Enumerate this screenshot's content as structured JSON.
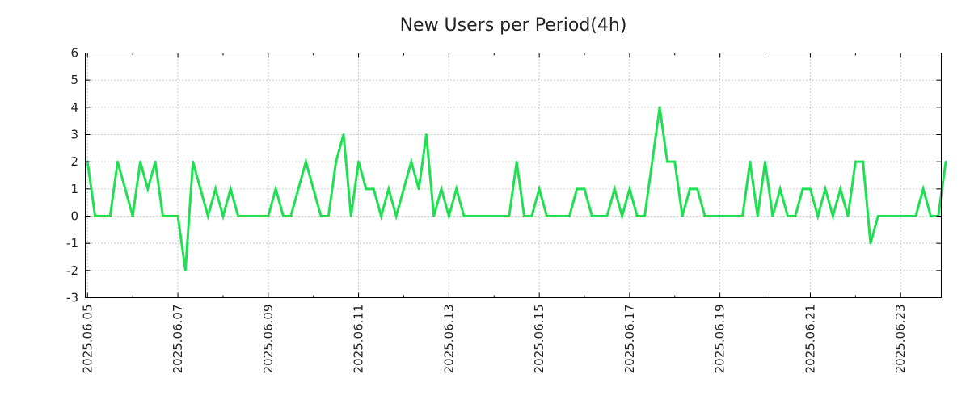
{
  "chart_data": {
    "type": "line",
    "title": "New Users per Period(4h)",
    "xlabel": "",
    "ylabel": "",
    "ylim": [
      -3,
      6
    ],
    "yticks": [
      -3,
      -2,
      -1,
      0,
      1,
      2,
      3,
      4,
      5,
      6
    ],
    "ytick_labels": [
      "-3",
      "-2",
      "-1",
      "0",
      "1",
      "2",
      "3",
      "4",
      "5",
      "6"
    ],
    "xlim_days": [
      -0.05,
      18.9
    ],
    "period_hours": 4,
    "xticks_days": [
      0,
      2,
      4,
      6,
      8,
      10,
      12,
      14,
      16,
      18
    ],
    "xtick_labels": [
      "2025.06.05",
      "2025.06.07",
      "2025.06.09",
      "2025.06.11",
      "2025.06.13",
      "2025.06.15",
      "2025.06.17",
      "2025.06.19",
      "2025.06.21",
      "2025.06.23"
    ],
    "grid": true,
    "series": [
      {
        "name": "New Users",
        "color": "#1ee050",
        "values": [
          2,
          0,
          0,
          0,
          2,
          1,
          0,
          2,
          1,
          2,
          0,
          0,
          0,
          -2,
          2,
          1,
          0,
          1,
          0,
          1,
          0,
          0,
          0,
          0,
          0,
          1,
          0,
          0,
          1,
          2,
          1,
          0,
          0,
          2,
          3,
          0,
          2,
          1,
          1,
          0,
          1,
          0,
          1,
          2,
          1,
          3,
          0,
          1,
          0,
          1,
          0,
          0,
          0,
          0,
          0,
          0,
          0,
          2,
          0,
          0,
          1,
          0,
          0,
          0,
          0,
          1,
          1,
          0,
          0,
          0,
          1,
          0,
          1,
          0,
          0,
          2,
          4,
          2,
          2,
          0,
          1,
          1,
          0,
          0,
          0,
          0,
          0,
          0,
          2,
          0,
          2,
          0,
          1,
          0,
          0,
          1,
          1,
          0,
          1,
          0,
          1,
          0,
          2,
          2,
          -1,
          0,
          0,
          0,
          0,
          0,
          0,
          1,
          0,
          0,
          2
        ]
      }
    ]
  }
}
